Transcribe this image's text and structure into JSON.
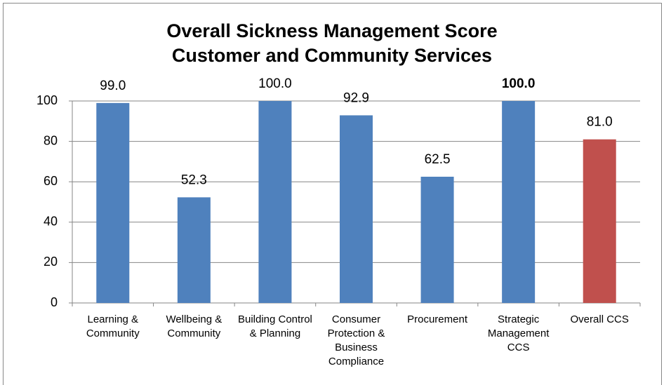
{
  "chart_data": {
    "type": "bar",
    "title": [
      "Overall Sickness Management Score",
      "Customer and Community Services"
    ],
    "categories": [
      "Learning & Community",
      "Wellbeing & Community",
      "Building Control & Planning",
      "Consumer Protection & Business Compliance",
      "Procurement",
      "Strategic Management CCS",
      "Overall CCS"
    ],
    "values": [
      99.0,
      52.3,
      100.0,
      92.9,
      62.5,
      100.0,
      81.0
    ],
    "value_labels": [
      "99.0",
      "52.3",
      "100.0",
      "92.9",
      "62.5",
      "100.0",
      "81.0"
    ],
    "value_label_bold": [
      false,
      false,
      false,
      false,
      false,
      true,
      false
    ],
    "colors": [
      "#4f81bd",
      "#4f81bd",
      "#4f81bd",
      "#4f81bd",
      "#4f81bd",
      "#4f81bd",
      "#c0504d"
    ],
    "ylim": [
      0,
      100
    ],
    "yticks": [
      0,
      20,
      40,
      60,
      80,
      100
    ],
    "grid": true
  }
}
